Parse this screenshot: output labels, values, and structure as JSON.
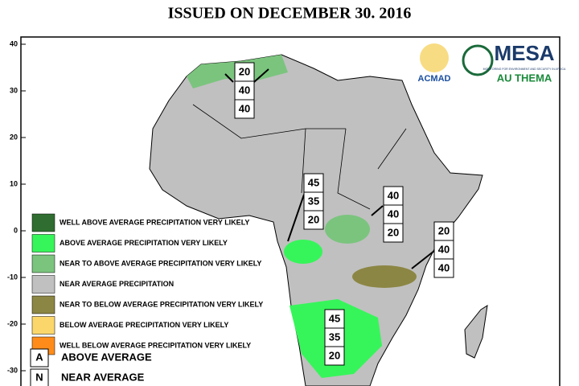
{
  "header": {
    "title": "ISSUED ON DECEMBER 30. 2016"
  },
  "axis": {
    "ylim": [
      40,
      -30
    ],
    "yticks": [
      40,
      30,
      20,
      10,
      0,
      -10,
      -20,
      -30
    ]
  },
  "logos": {
    "acmad": "ACMAD",
    "mesa": "MESA",
    "mesa_subtitle": "MONITORING FOR ENVIRONMENT AND SECURITY IN AFRICA",
    "au": "AU THEMA"
  },
  "legend": [
    {
      "label": "WELL ABOVE AVERAGE PRECIPITATION VERY LIKELY",
      "color": "#2f6e30"
    },
    {
      "label": "ABOVE AVERAGE PRECIPITATION VERY LIKELY",
      "color": "#36f55a"
    },
    {
      "label": "NEAR TO ABOVE AVERAGE PRECIPITATION VERY LIKELY",
      "color": "#7bc47e"
    },
    {
      "label": "NEAR AVERAGE PRECIPITATION",
      "color": "#c0c0c0"
    },
    {
      "label": "NEAR  TO BELOW AVERAGE PRECIPITATION VERY LIKELY",
      "color": "#8c8644"
    },
    {
      "label": "BELOW  AVERAGE PRECIPITATION VERY LIKELY",
      "color": "#fbd76b"
    },
    {
      "label": "WELL BELOW AVERAGE PRECIPITATION VERY LIKELY",
      "color": "#ff8c1a"
    }
  ],
  "key": [
    {
      "letter": "A",
      "label": "ABOVE AVERAGE"
    },
    {
      "letter": "N",
      "label": "NEAR AVERAGE"
    }
  ],
  "forecasts": [
    {
      "values": [
        "20",
        "40",
        "40"
      ]
    },
    {
      "values": [
        "45",
        "35",
        "20"
      ]
    },
    {
      "values": [
        "40",
        "40",
        "20"
      ]
    },
    {
      "values": [
        "20",
        "40",
        "40"
      ]
    },
    {
      "values": [
        "45",
        "35",
        "20"
      ]
    }
  ]
}
